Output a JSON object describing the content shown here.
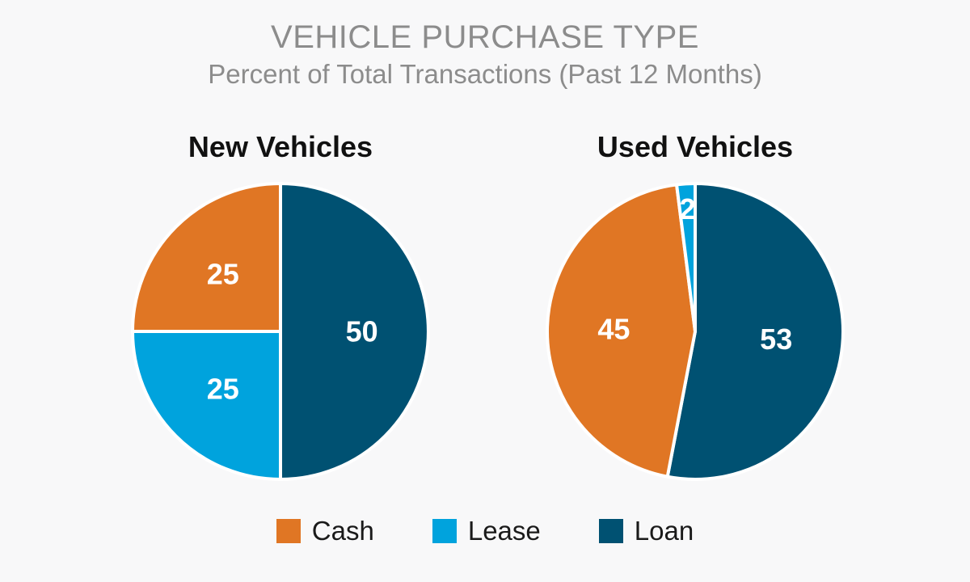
{
  "chart_data": {
    "type": "pie",
    "title": "VEHICLE PURCHASE TYPE",
    "subtitle": "Percent of Total Transactions (Past 12 Months)",
    "legend_position": "bottom",
    "categories": [
      "Cash",
      "Lease",
      "Loan"
    ],
    "colors": {
      "Cash": "#e07624",
      "Lease": "#00a3dd",
      "Loan": "#005172"
    },
    "charts": [
      {
        "name": "New Vehicles",
        "slices": [
          {
            "label": "Loan",
            "value": 50
          },
          {
            "label": "Lease",
            "value": 25
          },
          {
            "label": "Cash",
            "value": 25
          }
        ]
      },
      {
        "name": "Used Vehicles",
        "slices": [
          {
            "label": "Loan",
            "value": 53
          },
          {
            "label": "Cash",
            "value": 45
          },
          {
            "label": "Lease",
            "value": 2
          }
        ]
      }
    ]
  }
}
